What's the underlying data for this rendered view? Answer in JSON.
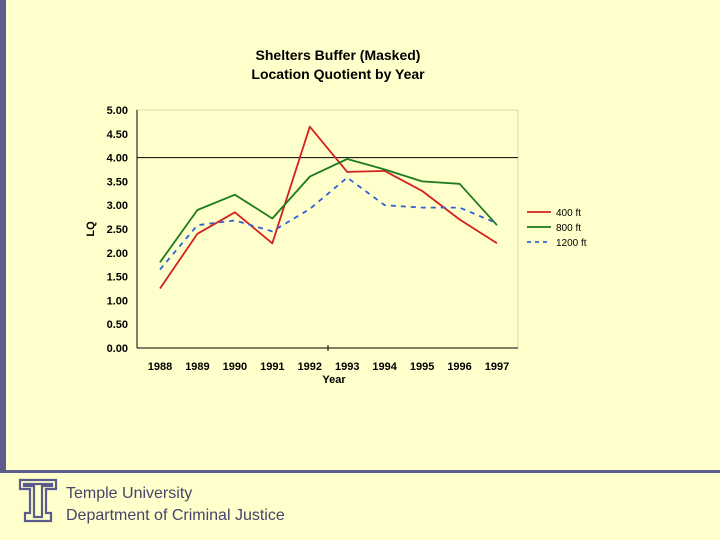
{
  "chart_data": {
    "type": "line",
    "title_line1": "Shelters Buffer (Masked)",
    "title_line2": "Location Quotient by Year",
    "xlabel": "Year",
    "ylabel": "LQ",
    "categories": [
      "1988",
      "1989",
      "1990",
      "1991",
      "1992",
      "1993",
      "1994",
      "1995",
      "1996",
      "1997"
    ],
    "ylim": [
      0,
      5
    ],
    "yticks": [
      "0.00",
      "0.50",
      "1.00",
      "1.50",
      "2.00",
      "2.50",
      "3.00",
      "3.50",
      "4.00",
      "4.50",
      "5.00"
    ],
    "reference_line": 4.0,
    "legend_position": "right",
    "series": [
      {
        "name": "400 ft",
        "color": "#D42020",
        "dash": "solid",
        "values": [
          1.25,
          2.4,
          2.85,
          2.2,
          4.65,
          3.7,
          3.72,
          3.3,
          2.7,
          2.2
        ]
      },
      {
        "name": "800 ft",
        "color": "#1E7A1E",
        "dash": "solid",
        "values": [
          1.8,
          2.9,
          3.22,
          2.72,
          3.6,
          3.97,
          3.75,
          3.5,
          3.45,
          2.58
        ]
      },
      {
        "name": "1200 ft",
        "color": "#3060D8",
        "dash": "dashed",
        "values": [
          1.65,
          2.58,
          2.68,
          2.45,
          2.92,
          3.58,
          3.0,
          2.95,
          2.95,
          2.62
        ]
      }
    ]
  },
  "footer": {
    "line1": "Temple University",
    "line2": "Department of Criminal Justice"
  }
}
